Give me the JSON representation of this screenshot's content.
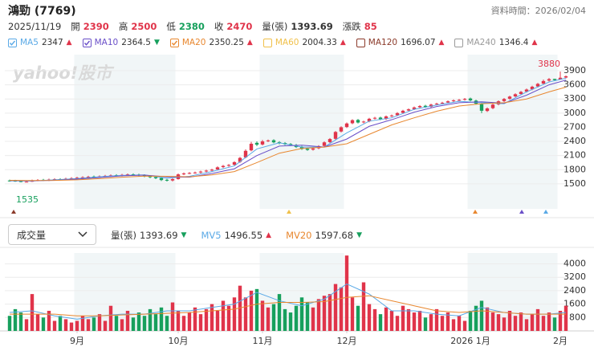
{
  "header": {
    "title": "鴻勁 (7769)",
    "updated": "資料時間：2026/02/04",
    "date": "2025/11/19",
    "quote": [
      {
        "label": "開",
        "value": 2390,
        "color": "#e0344a"
      },
      {
        "label": "高",
        "value": 2500,
        "color": "#e0344a"
      },
      {
        "label": "低",
        "value": 2380,
        "color": "#17a05d"
      },
      {
        "label": "收",
        "value": 2470,
        "color": "#e0344a"
      },
      {
        "label": "量(張)",
        "value": 1393.69,
        "color": "#333333"
      },
      {
        "label": "漲跌",
        "value": 85,
        "color": "#e0344a"
      }
    ]
  },
  "chart_data": [
    {
      "type": "candlestick",
      "watermark": "yahoo!股市",
      "up_color": "#e0344a",
      "down_color": "#17a05d",
      "ylim": [
        970,
        4070
      ],
      "yticks": [
        1500,
        1800,
        2100,
        2400,
        2700,
        3000,
        3300,
        3600,
        3900
      ],
      "grid": true,
      "open": [
        1570,
        1565,
        1555,
        1540,
        1545,
        1570,
        1585,
        1575,
        1590,
        1600,
        1600,
        1610,
        1620,
        1632,
        1642,
        1655,
        1648,
        1662,
        1672,
        1684,
        1678,
        1692,
        1702,
        1696,
        1682,
        1662,
        1645,
        1625,
        1585,
        1572,
        1600,
        1702,
        1722,
        1735,
        1742,
        1762,
        1782,
        1805,
        1855,
        1882,
        1905,
        1965,
        2060,
        2210,
        2370,
        2335,
        2405,
        2425,
        2385,
        2365,
        2345,
        2325,
        2285,
        2245,
        2225,
        2255,
        2305,
        2385,
        2455,
        2610,
        2705,
        2785,
        2855,
        2805,
        2825,
        2885,
        2905,
        2875,
        2935,
        2955,
        3005,
        3055,
        3085,
        3125,
        3155,
        3135,
        3185,
        3205,
        3225,
        3255,
        3275,
        3285,
        3310,
        3265,
        3190,
        3045,
        3105,
        3185,
        3255,
        3305,
        3355,
        3405,
        3455,
        3505,
        3565,
        3625,
        3690,
        3725,
        3710,
        3755
      ],
      "high": [
        1590,
        1585,
        1575,
        1565,
        1590,
        1600,
        1605,
        1610,
        1620,
        1620,
        1630,
        1640,
        1650,
        1660,
        1670,
        1675,
        1680,
        1690,
        1700,
        1704,
        1710,
        1720,
        1722,
        1716,
        1702,
        1682,
        1665,
        1645,
        1605,
        1620,
        1720,
        1740,
        1750,
        1760,
        1780,
        1800,
        1820,
        1870,
        1900,
        1920,
        1980,
        2070,
        2230,
        2390,
        2400,
        2430,
        2440,
        2445,
        2405,
        2385,
        2365,
        2345,
        2305,
        2265,
        2270,
        2320,
        2400,
        2470,
        2620,
        2720,
        2800,
        2870,
        2875,
        2840,
        2900,
        2920,
        2925,
        2950,
        2970,
        3020,
        3070,
        3100,
        3140,
        3170,
        3175,
        3200,
        3220,
        3240,
        3270,
        3290,
        3300,
        3320,
        3330,
        3285,
        3210,
        3120,
        3200,
        3270,
        3320,
        3370,
        3420,
        3470,
        3520,
        3580,
        3640,
        3710,
        3745,
        3730,
        3880,
        3800
      ],
      "low": [
        1545,
        1542,
        1535,
        1538,
        1540,
        1555,
        1560,
        1560,
        1575,
        1580,
        1585,
        1595,
        1600,
        1612,
        1622,
        1625,
        1628,
        1642,
        1652,
        1655,
        1658,
        1672,
        1675,
        1660,
        1640,
        1620,
        1600,
        1560,
        1550,
        1552,
        1590,
        1685,
        1705,
        1715,
        1722,
        1742,
        1762,
        1785,
        1835,
        1862,
        1885,
        1945,
        2040,
        2190,
        2300,
        2315,
        2385,
        2360,
        2340,
        2320,
        2300,
        2260,
        2220,
        2200,
        2205,
        2235,
        2285,
        2365,
        2435,
        2590,
        2685,
        2765,
        2780,
        2785,
        2805,
        2865,
        2850,
        2855,
        2915,
        2935,
        2985,
        3035,
        3065,
        3105,
        3110,
        3115,
        3165,
        3185,
        3205,
        3235,
        3255,
        3265,
        3250,
        3180,
        3000,
        3025,
        3085,
        3165,
        3235,
        3285,
        3335,
        3385,
        3435,
        3485,
        3545,
        3605,
        3670,
        3680,
        3730,
        3735
      ],
      "close": [
        1560,
        1550,
        1540,
        1545,
        1570,
        1580,
        1575,
        1590,
        1600,
        1595,
        1610,
        1620,
        1630,
        1640,
        1650,
        1645,
        1660,
        1670,
        1680,
        1675,
        1690,
        1700,
        1695,
        1680,
        1660,
        1640,
        1620,
        1580,
        1570,
        1600,
        1700,
        1720,
        1730,
        1740,
        1760,
        1780,
        1800,
        1850,
        1880,
        1900,
        1960,
        2050,
        2200,
        2350,
        2330,
        2400,
        2420,
        2380,
        2360,
        2340,
        2320,
        2280,
        2240,
        2220,
        2250,
        2300,
        2380,
        2450,
        2600,
        2700,
        2780,
        2850,
        2800,
        2820,
        2880,
        2900,
        2870,
        2930,
        2950,
        3000,
        3050,
        3080,
        3120,
        3150,
        3130,
        3180,
        3200,
        3220,
        3250,
        3270,
        3280,
        3300,
        3270,
        3200,
        3050,
        3100,
        3180,
        3250,
        3300,
        3350,
        3400,
        3450,
        3500,
        3560,
        3620,
        3680,
        3720,
        3700,
        3750,
        3780
      ],
      "series": [
        {
          "name": "MA5",
          "color": "#5aa9e6",
          "latest": 2347,
          "trend": "▲",
          "checked": true,
          "x": [
            0,
            4,
            8,
            12,
            16,
            20,
            24,
            28,
            32,
            36,
            40,
            44,
            48,
            52,
            56,
            60,
            64,
            68,
            72,
            76,
            80,
            84,
            88,
            92,
            96,
            99
          ],
          "values": [
            1565,
            1560,
            1585,
            1610,
            1650,
            1680,
            1690,
            1620,
            1660,
            1760,
            1880,
            2240,
            2370,
            2280,
            2280,
            2580,
            2830,
            2900,
            3080,
            3170,
            3250,
            3220,
            3200,
            3450,
            3660,
            3740
          ]
        },
        {
          "name": "MA10",
          "color": "#6a4fc8",
          "latest": 2364.5,
          "trend": "▼",
          "checked": true,
          "x": [
            0,
            4,
            8,
            12,
            16,
            20,
            24,
            28,
            32,
            36,
            40,
            44,
            48,
            52,
            56,
            60,
            64,
            68,
            72,
            76,
            80,
            84,
            88,
            92,
            96,
            99
          ],
          "values": [
            1570,
            1565,
            1575,
            1600,
            1635,
            1670,
            1685,
            1650,
            1640,
            1720,
            1820,
            2100,
            2300,
            2320,
            2280,
            2450,
            2720,
            2860,
            3020,
            3140,
            3220,
            3240,
            3210,
            3380,
            3600,
            3700
          ]
        },
        {
          "name": "MA20",
          "color": "#e8872f",
          "latest": 2350.25,
          "trend": "▲",
          "checked": true,
          "x": [
            0,
            4,
            8,
            12,
            16,
            20,
            24,
            28,
            32,
            36,
            40,
            44,
            48,
            52,
            56,
            60,
            64,
            68,
            72,
            76,
            80,
            84,
            88,
            92,
            96,
            99
          ],
          "values": [
            1575,
            1570,
            1572,
            1585,
            1610,
            1640,
            1665,
            1660,
            1650,
            1690,
            1760,
            1950,
            2150,
            2250,
            2280,
            2350,
            2550,
            2750,
            2900,
            3040,
            3150,
            3200,
            3220,
            3300,
            3450,
            3550
          ]
        },
        {
          "name": "MA60",
          "color": "#f0c04a",
          "latest": 2004.33,
          "trend": "▲",
          "checked": false
        },
        {
          "name": "MA120",
          "color": "#8b3a2a",
          "latest": 1696.07,
          "trend": "▲",
          "checked": false
        },
        {
          "name": "MA240",
          "color": "#9a9a9a",
          "latest": 1346.4,
          "trend": "▲",
          "checked": false
        }
      ]
    },
    {
      "type": "bar",
      "selector": "成交量",
      "ylim": [
        0,
        4650
      ],
      "yticks": [
        800,
        1600,
        2400,
        3200,
        4000
      ],
      "grid": true,
      "xticks": [
        {
          "value": 12,
          "label": "9月"
        },
        {
          "value": 30,
          "label": "10月"
        },
        {
          "value": 45,
          "label": "11月"
        },
        {
          "value": 60,
          "label": "12月"
        },
        {
          "value": 82,
          "label": "2026 1月"
        },
        {
          "value": 98,
          "label": "2月"
        }
      ],
      "volume_label": {
        "name": "量(張)",
        "latest": 1393.69,
        "trend": "▼",
        "color": "#333333"
      },
      "values": [
        900,
        1300,
        1100,
        700,
        2200,
        1000,
        800,
        1200,
        600,
        900,
        700,
        500,
        600,
        900,
        700,
        800,
        1000,
        600,
        1500,
        900,
        700,
        1200,
        800,
        1100,
        900,
        1300,
        1000,
        1400,
        900,
        1700,
        1200,
        900,
        1100,
        1400,
        1000,
        1300,
        1600,
        1200,
        1800,
        1500,
        2000,
        2700,
        2000,
        2400,
        2500,
        1800,
        1400,
        1600,
        2200,
        1300,
        1100,
        1500,
        2000,
        1700,
        1400,
        1900,
        2100,
        2200,
        2800,
        2600,
        4500,
        2000,
        1500,
        2900,
        1600,
        1300,
        1000,
        1400,
        1200,
        900,
        1500,
        1300,
        1100,
        1200,
        800,
        1000,
        1300,
        900,
        1100,
        700,
        900,
        600,
        1200,
        1500,
        1800,
        1400,
        1100,
        1000,
        800,
        1200,
        900,
        1100,
        700,
        1000,
        1300,
        900,
        1100,
        800,
        1200,
        1500
      ],
      "series": [
        {
          "name": "MV5",
          "color": "#5aa9e6",
          "latest": 1496.55,
          "trend": "▲",
          "x": [
            0,
            4,
            8,
            12,
            16,
            20,
            24,
            28,
            32,
            36,
            40,
            44,
            48,
            52,
            56,
            60,
            64,
            68,
            72,
            76,
            80,
            84,
            88,
            92,
            96,
            99
          ],
          "values": [
            1100,
            1200,
            900,
            700,
            900,
            1000,
            1000,
            1200,
            1200,
            1400,
            1600,
            2300,
            1800,
            1500,
            1900,
            2800,
            2200,
            1200,
            1200,
            1000,
            900,
            1400,
            1100,
            1000,
            1000,
            1100
          ]
        },
        {
          "name": "MV20",
          "color": "#e8872f",
          "latest": 1597.68,
          "trend": "▼",
          "x": [
            0,
            4,
            8,
            12,
            16,
            20,
            24,
            28,
            32,
            36,
            40,
            44,
            48,
            52,
            56,
            60,
            64,
            68,
            72,
            76,
            80,
            84,
            88,
            92,
            96,
            99
          ],
          "values": [
            1000,
            1000,
            1000,
            900,
            900,
            950,
            1000,
            1050,
            1100,
            1200,
            1300,
            1600,
            1700,
            1700,
            1750,
            2000,
            2100,
            1800,
            1500,
            1200,
            1100,
            1200,
            1100,
            1000,
            1000,
            1000
          ]
        }
      ]
    }
  ]
}
